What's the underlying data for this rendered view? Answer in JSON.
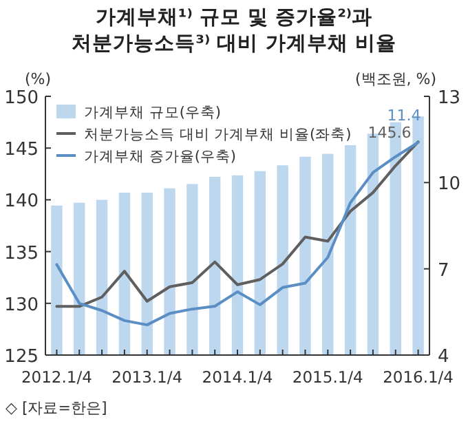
{
  "chart_data": {
    "type": "bar",
    "title": "가계부채¹⁾ 규모 및 증가율²⁾과\n처분가능소득³⁾ 대비 가계부채 비율",
    "ylabel": "(%)",
    "y2label": "(백조원, %)",
    "categories": [
      "2012.1/4",
      null,
      null,
      null,
      "2013.1/4",
      null,
      null,
      null,
      "2014.1/4",
      null,
      null,
      null,
      "2015.1/4",
      null,
      null,
      null,
      "2016.1/4"
    ],
    "series": [
      {
        "name": "가계부채 규모(우축)",
        "type": "bar",
        "axis": "y2",
        "color": "#bdd7ee",
        "values": [
          9.2,
          9.3,
          9.4,
          9.65,
          9.65,
          9.8,
          9.95,
          10.2,
          10.25,
          10.4,
          10.6,
          10.9,
          11.0,
          11.3,
          11.7,
          12.1,
          12.3
        ]
      },
      {
        "name": "처분가능소득 대비 가계부채 비율(좌축)",
        "type": "line",
        "color": "#5f5f5f",
        "values": [
          129.7,
          129.7,
          130.6,
          133.1,
          130.2,
          131.6,
          132.0,
          134.0,
          131.8,
          132.3,
          133.8,
          136.4,
          136.0,
          138.9,
          140.7,
          143.3,
          145.6
        ],
        "value_labels": [
          null,
          null,
          null,
          null,
          null,
          null,
          null,
          null,
          null,
          null,
          null,
          null,
          null,
          null,
          null,
          null,
          "145.6"
        ]
      },
      {
        "name": "가계부채 증가율(우축)",
        "type": "line",
        "axis": "y2",
        "color": "#5b8ec4",
        "values": [
          7.15,
          5.8,
          5.55,
          5.2,
          5.05,
          5.45,
          5.6,
          5.7,
          6.2,
          5.75,
          6.35,
          6.5,
          7.4,
          9.3,
          10.35,
          10.9,
          11.4
        ],
        "value_labels": [
          null,
          null,
          null,
          null,
          null,
          null,
          null,
          null,
          null,
          null,
          null,
          null,
          null,
          null,
          null,
          null,
          "11.4"
        ]
      }
    ],
    "ylim": [
      125,
      150
    ],
    "yticks": [
      125,
      130,
      135,
      140,
      145,
      150
    ],
    "y2lim": [
      4,
      13
    ],
    "y2ticks": [
      4,
      7,
      10,
      13
    ],
    "legend": "top left",
    "grid": false,
    "annotations": [
      "◇ [자료=한은]"
    ]
  }
}
